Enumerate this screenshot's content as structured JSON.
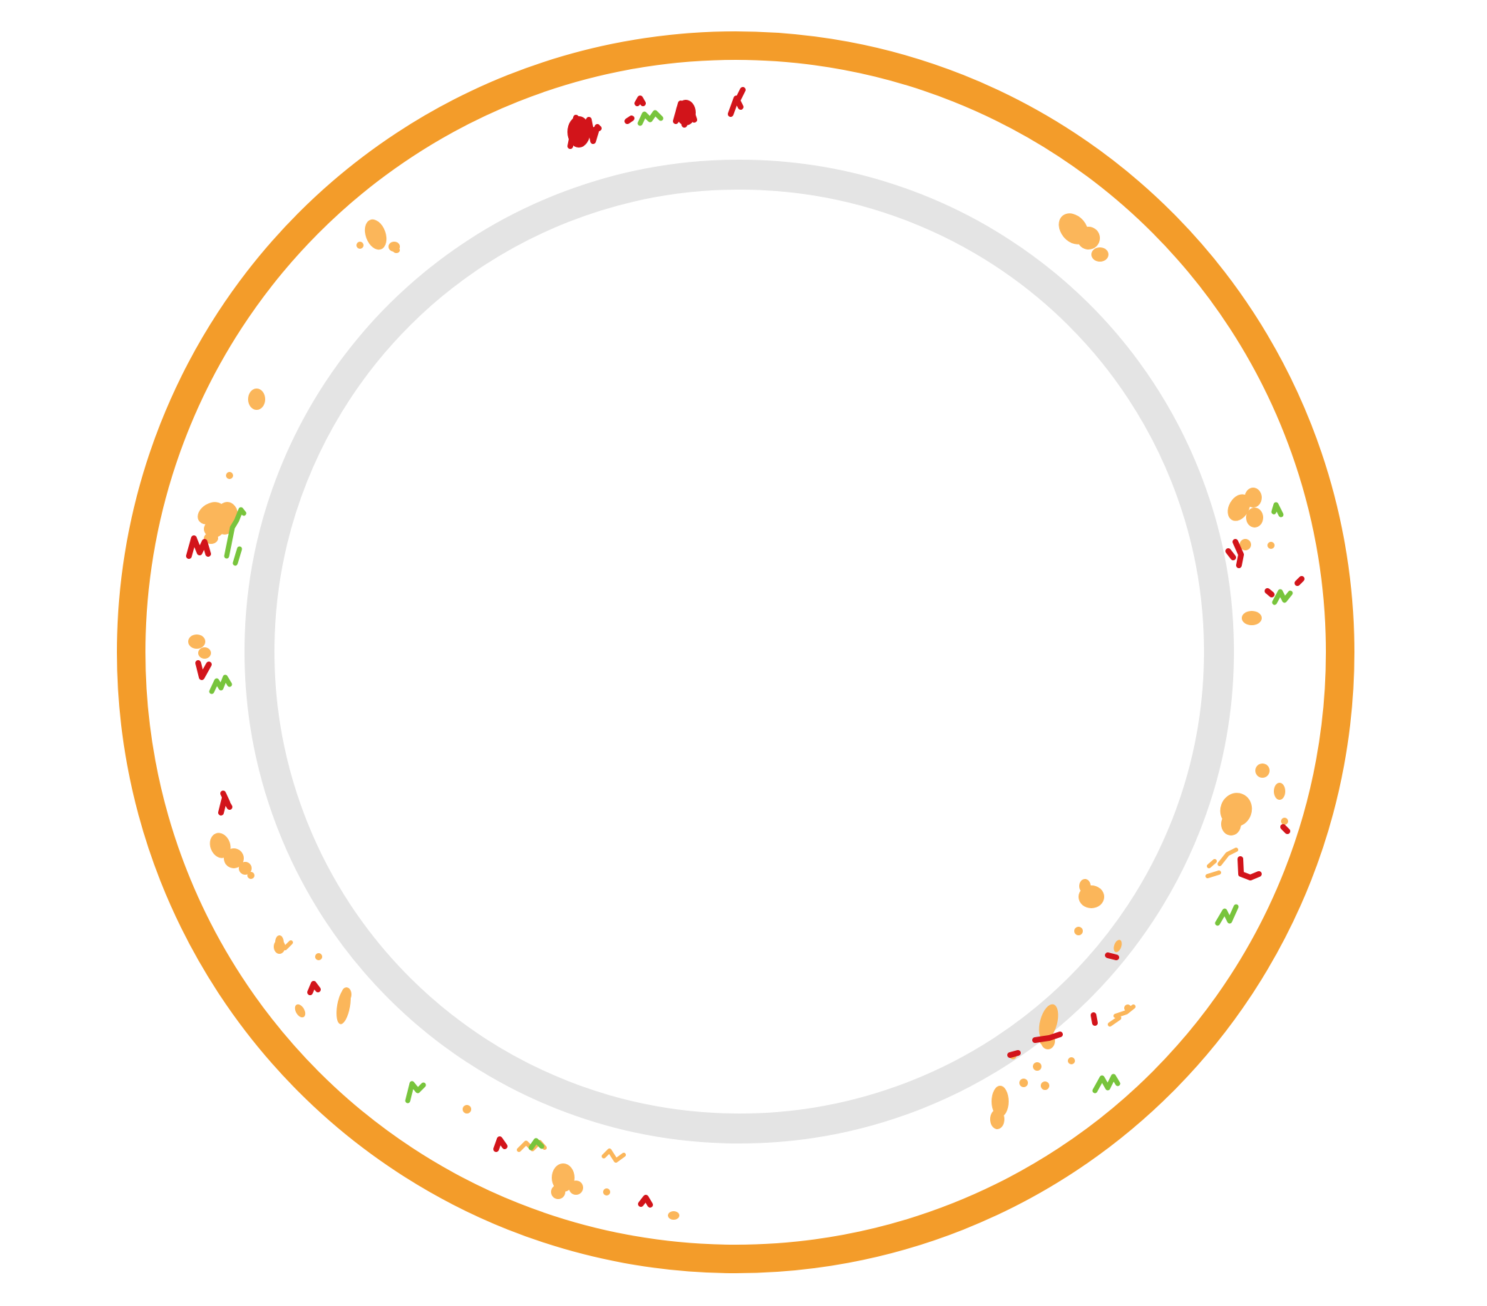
{
  "illustration": {
    "subject": "plate-with-food-crumbs",
    "colors": {
      "background": "#ffffff",
      "rim": "#f39c2a",
      "plate_face": "#ffffff",
      "inner_ring": "#e4e4e4",
      "crumb_light_orange": "#fbb65a",
      "crumb_red": "#d2141a",
      "crumb_green": "#78c43c"
    },
    "crumb_color_names": [
      "light-orange",
      "red",
      "green"
    ]
  }
}
